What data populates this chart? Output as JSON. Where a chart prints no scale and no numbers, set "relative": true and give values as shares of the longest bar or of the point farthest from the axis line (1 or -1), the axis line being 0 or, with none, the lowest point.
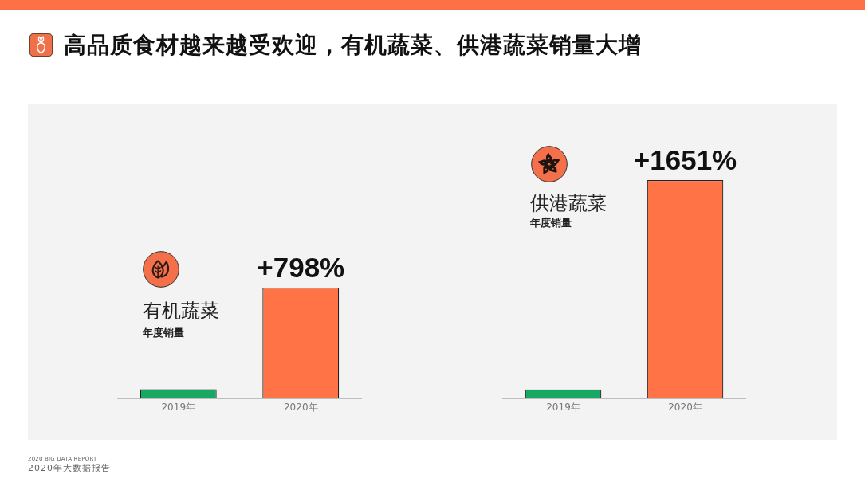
{
  "chart_data": [
    {
      "type": "other",
      "title": "高品质食材越来越受欢迎，有机蔬菜、供港蔬菜销量大增",
      "annotations": [
        "2020 BIG DATA REPORT",
        "2020年大数据报告"
      ]
    },
    {
      "type": "bar",
      "title": "有机蔬菜",
      "subtitle": "年度销量",
      "categories": [
        "2019年",
        "2020年"
      ],
      "values": [
        0.08,
        1
      ],
      "colors": [
        "#17a862",
        "#ff7346"
      ],
      "relative": true,
      "annotations": [
        {
          "text": "+798%",
          "x": "2020年",
          "y": 1
        }
      ]
    },
    {
      "type": "bar",
      "title": "供港蔬菜",
      "subtitle": "年度销量",
      "categories": [
        "2019年",
        "2020年"
      ],
      "values": [
        0.04,
        1
      ],
      "colors": [
        "#17a862",
        "#ff7346"
      ],
      "relative": true,
      "annotations": [
        {
          "text": "+1651%",
          "x": "2020年",
          "y": 1
        }
      ]
    }
  ]
}
